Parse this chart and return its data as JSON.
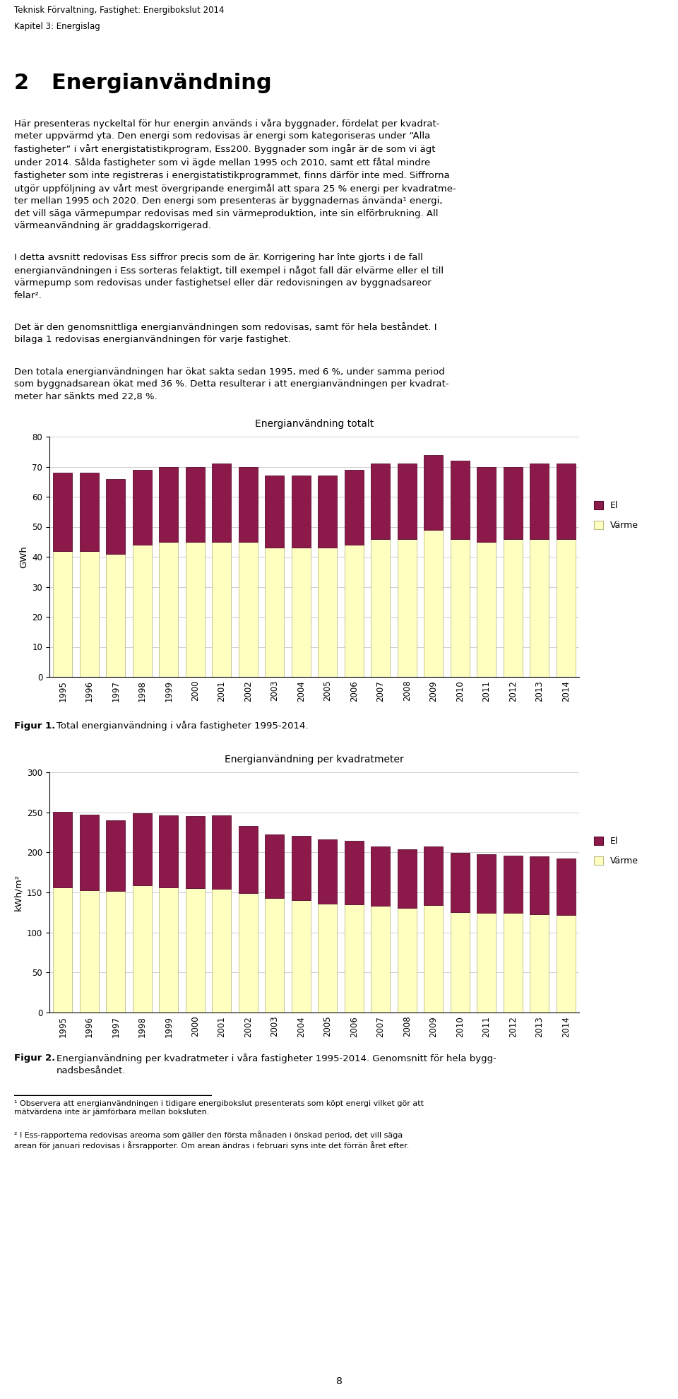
{
  "header_line1": "Teknisk Förvaltning, Fastighet: Energibokslut 2014",
  "header_line2": "Kapitel 3: Energislag",
  "chapter_title": "2   Energianvändning",
  "fig1_title": "Energianvändning totalt",
  "fig1_ylabel": "GWh",
  "fig2_title": "Energianvändning per kvadratmeter",
  "fig2_ylabel": "kWh/m²",
  "page_number": "8",
  "years": [
    1995,
    1996,
    1997,
    1998,
    1999,
    2000,
    2001,
    2002,
    2003,
    2004,
    2005,
    2006,
    2007,
    2008,
    2009,
    2010,
    2011,
    2012,
    2013,
    2014
  ],
  "fig1_varme": [
    42,
    42,
    41,
    44,
    45,
    45,
    45,
    45,
    43,
    43,
    43,
    44,
    46,
    46,
    49,
    46,
    45,
    46,
    46,
    46
  ],
  "fig1_el": [
    26,
    26,
    25,
    25,
    25,
    25,
    26,
    25,
    24,
    24,
    24,
    25,
    25,
    25,
    25,
    26,
    25,
    24,
    25,
    25
  ],
  "fig2_varme": [
    156,
    153,
    152,
    159,
    156,
    155,
    154,
    149,
    143,
    140,
    136,
    135,
    133,
    131,
    134,
    125,
    124,
    124,
    123,
    122
  ],
  "fig2_el": [
    95,
    94,
    88,
    90,
    90,
    90,
    92,
    84,
    79,
    81,
    80,
    79,
    74,
    73,
    73,
    74,
    74,
    72,
    72,
    70
  ],
  "color_el": "#8B1A4A",
  "color_varme": "#FFFFC0",
  "color_el_border": "#5A0A30",
  "color_varme_border": "#BBBB88"
}
